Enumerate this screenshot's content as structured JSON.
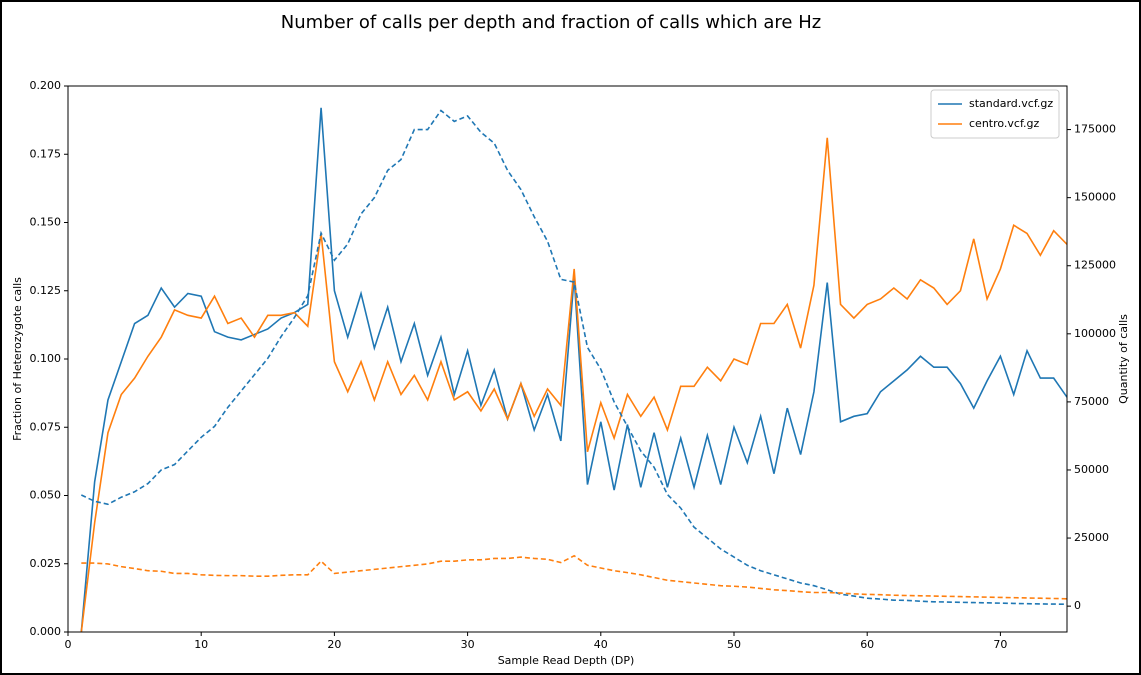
{
  "chart_data": {
    "type": "line",
    "title": "Number of calls per depth and fraction of calls which are Hz",
    "x_label": "Sample Read Depth (DP)",
    "y_label": "Fraction of Heterozygote calls",
    "y2_label": "Quantity of calls",
    "x": [
      1,
      2,
      3,
      4,
      5,
      6,
      7,
      8,
      9,
      10,
      11,
      12,
      13,
      14,
      15,
      16,
      17,
      18,
      19,
      20,
      21,
      22,
      23,
      24,
      25,
      26,
      27,
      28,
      29,
      30,
      31,
      32,
      33,
      34,
      35,
      36,
      37,
      38,
      39,
      40,
      41,
      42,
      43,
      44,
      45,
      46,
      47,
      48,
      49,
      50,
      51,
      52,
      53,
      54,
      55,
      56,
      57,
      58,
      59,
      60,
      61,
      62,
      63,
      64,
      65,
      66,
      67,
      68,
      69,
      70,
      71,
      72,
      73,
      74,
      75
    ],
    "xlim": [
      0,
      75
    ],
    "xticks": [
      0,
      10,
      20,
      30,
      40,
      50,
      60,
      70
    ],
    "ylim": [
      0,
      0.2
    ],
    "yticks": [
      {
        "value": 0,
        "label": "0.000"
      },
      {
        "value": 0.025,
        "label": "0.025"
      },
      {
        "value": 0.05,
        "label": "0.050"
      },
      {
        "value": 0.075,
        "label": "0.075"
      },
      {
        "value": 0.1,
        "label": "0.100"
      },
      {
        "value": 0.125,
        "label": "0.125"
      },
      {
        "value": 0.15,
        "label": "0.150"
      },
      {
        "value": 0.175,
        "label": "0.175"
      },
      {
        "value": 0.2,
        "label": "0.200"
      }
    ],
    "y2lim": [
      -9500,
      191000
    ],
    "y2ticks": [
      0,
      25000,
      50000,
      75000,
      100000,
      125000,
      150000,
      175000
    ],
    "legend": "upper right",
    "series": [
      {
        "name": "standard.vcf.gz",
        "color": "#1f77b4",
        "linestyle": "solid",
        "values": [
          0.0,
          0.055,
          0.085,
          0.099,
          0.113,
          0.116,
          0.126,
          0.119,
          0.124,
          0.123,
          0.11,
          0.108,
          0.107,
          0.109,
          0.111,
          0.115,
          0.117,
          0.12,
          0.192,
          0.125,
          0.108,
          0.124,
          0.104,
          0.119,
          0.099,
          0.113,
          0.094,
          0.108,
          0.087,
          0.103,
          0.083,
          0.096,
          0.078,
          0.091,
          0.074,
          0.087,
          0.07,
          0.13,
          0.054,
          0.077,
          0.052,
          0.076,
          0.053,
          0.073,
          0.053,
          0.071,
          0.053,
          0.072,
          0.054,
          0.075,
          0.062,
          0.079,
          0.058,
          0.082,
          0.065,
          0.088,
          0.128,
          0.077,
          0.079,
          0.08,
          0.088,
          0.092,
          0.096,
          0.101,
          0.097,
          0.097,
          0.091,
          0.082,
          0.092,
          0.101,
          0.087,
          0.103,
          0.093,
          0.093,
          0.086
        ]
      },
      {
        "name": "centro.vcf.gz",
        "color": "#ff7f0e",
        "linestyle": "solid",
        "values": [
          0.0,
          0.04,
          0.073,
          0.087,
          0.093,
          0.101,
          0.108,
          0.118,
          0.116,
          0.115,
          0.123,
          0.113,
          0.115,
          0.108,
          0.116,
          0.116,
          0.117,
          0.112,
          0.146,
          0.099,
          0.088,
          0.099,
          0.085,
          0.099,
          0.087,
          0.094,
          0.085,
          0.099,
          0.085,
          0.088,
          0.081,
          0.089,
          0.078,
          0.091,
          0.079,
          0.089,
          0.083,
          0.133,
          0.066,
          0.084,
          0.071,
          0.087,
          0.079,
          0.086,
          0.074,
          0.09,
          0.09,
          0.097,
          0.092,
          0.1,
          0.098,
          0.113,
          0.113,
          0.12,
          0.104,
          0.127,
          0.181,
          0.12,
          0.115,
          0.12,
          0.122,
          0.126,
          0.122,
          0.129,
          0.126,
          0.12,
          0.125,
          0.144,
          0.122,
          0.133,
          0.149,
          0.146,
          0.138,
          0.147,
          0.142
        ]
      },
      {
        "color": "#1f77b4",
        "linestyle": "dashed",
        "axis": "y2",
        "values": [
          40800,
          38500,
          37400,
          40000,
          42000,
          45000,
          50000,
          52000,
          57000,
          62000,
          66000,
          73000,
          79000,
          85000,
          91000,
          99000,
          106000,
          114000,
          137000,
          127000,
          133000,
          144000,
          150000,
          160000,
          164000,
          175000,
          175000,
          182000,
          178000,
          180000,
          174000,
          170000,
          160000,
          153000,
          143000,
          134000,
          120000,
          119000,
          95000,
          87000,
          75000,
          66000,
          57000,
          51000,
          41000,
          36000,
          29000,
          25000,
          21000,
          18000,
          15000,
          13000,
          11500,
          10000,
          8500,
          7500,
          6000,
          4400,
          3700,
          2900,
          2600,
          2200,
          2100,
          1800,
          1600,
          1500,
          1400,
          1300,
          1200,
          1100,
          1000,
          900,
          800,
          750,
          700
        ]
      },
      {
        "color": "#ff7f0e",
        "linestyle": "dashed",
        "axis": "y2",
        "values": [
          15800,
          15800,
          15500,
          14500,
          13800,
          13000,
          12800,
          12000,
          12000,
          11500,
          11300,
          11200,
          11200,
          11000,
          11000,
          11300,
          11500,
          11500,
          16500,
          12000,
          12500,
          13000,
          13500,
          14000,
          14500,
          15000,
          15500,
          16500,
          16500,
          17000,
          17000,
          17500,
          17500,
          18000,
          17500,
          17200,
          16000,
          18500,
          15000,
          14000,
          13000,
          12300,
          11500,
          10500,
          9500,
          9000,
          8500,
          8000,
          7500,
          7300,
          7000,
          6500,
          6000,
          5700,
          5300,
          5000,
          5000,
          4800,
          4500,
          4300,
          4200,
          4000,
          3900,
          3800,
          3700,
          3600,
          3500,
          3400,
          3300,
          3200,
          3100,
          3000,
          2900,
          2800,
          2700
        ]
      }
    ]
  }
}
